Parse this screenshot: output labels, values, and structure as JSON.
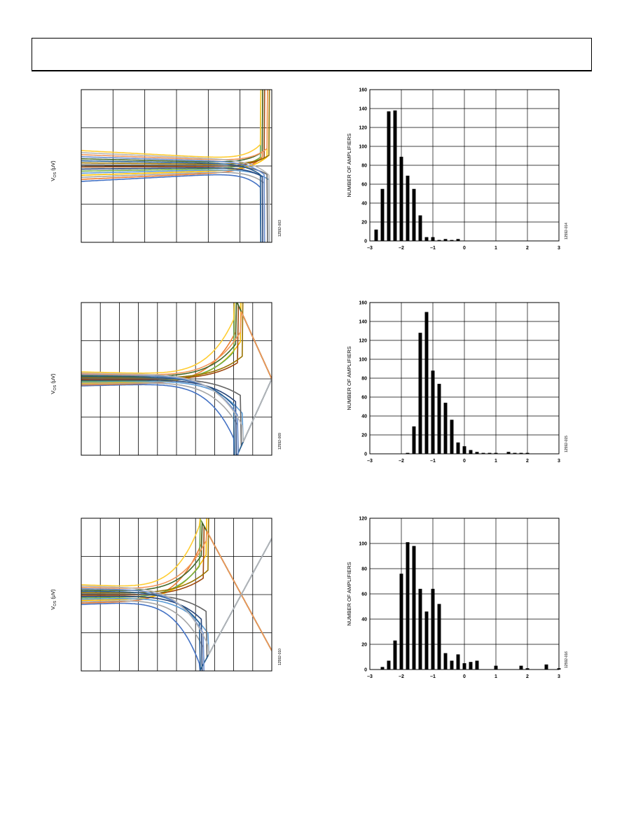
{
  "curve_plots": [
    {
      "ylabel_main": "V",
      "ylabel_sub": "OS",
      "ylabel_unit": " (μV)",
      "code": "12592-003"
    },
    {
      "ylabel_main": "V",
      "ylabel_sub": "OS",
      "ylabel_unit": " (μV)",
      "code": "12592-009"
    },
    {
      "ylabel_main": "V",
      "ylabel_sub": "OS",
      "ylabel_unit": " (μV)",
      "code": "12592-010"
    }
  ],
  "chart_data": [
    {
      "type": "bar",
      "ylabel": "NUMBER OF AMPLIFIERS",
      "xlim": [
        -3,
        3
      ],
      "ylim": [
        0,
        160
      ],
      "xticks": [
        "–3",
        "–2",
        "–1",
        "0",
        "1",
        "2",
        "3"
      ],
      "yticks": [
        "0",
        "20",
        "40",
        "60",
        "80",
        "100",
        "120",
        "140",
        "160"
      ],
      "code": "12592-014",
      "x": [
        -2.8,
        -2.6,
        -2.4,
        -2.2,
        -2.0,
        -1.8,
        -1.6,
        -1.4,
        -1.2,
        -1.0,
        -0.8,
        -0.6,
        -0.4,
        -0.2
      ],
      "values": [
        12,
        55,
        137,
        138,
        89,
        69,
        55,
        27,
        4,
        4,
        1,
        2,
        1,
        2
      ]
    },
    {
      "type": "bar",
      "ylabel": "NUMBER OF AMPLIFIERS",
      "xlim": [
        -3,
        3
      ],
      "ylim": [
        0,
        160
      ],
      "xticks": [
        "–3",
        "–2",
        "–1",
        "0",
        "1",
        "2",
        "3"
      ],
      "yticks": [
        "0",
        "20",
        "40",
        "60",
        "80",
        "100",
        "120",
        "140",
        "160"
      ],
      "code": "12592-015",
      "x": [
        -1.8,
        -1.6,
        -1.4,
        -1.2,
        -1.0,
        -0.8,
        -0.6,
        -0.4,
        -0.2,
        0.0,
        0.2,
        0.4,
        0.6,
        0.8,
        1.0,
        1.4,
        1.6,
        1.8,
        2.0
      ],
      "values": [
        1,
        29,
        128,
        150,
        88,
        74,
        54,
        36,
        12,
        8,
        4,
        2,
        1,
        1,
        1,
        2,
        1,
        1,
        1
      ]
    },
    {
      "type": "bar",
      "ylabel": "NUMBER OF AMPLIFIERS",
      "xlim": [
        -3,
        3
      ],
      "ylim": [
        0,
        120
      ],
      "xticks": [
        "–3",
        "–2",
        "–1",
        "0",
        "1",
        "2",
        "3"
      ],
      "yticks": [
        "0",
        "20",
        "40",
        "60",
        "80",
        "100",
        "120"
      ],
      "code": "12592-016",
      "x": [
        -2.6,
        -2.4,
        -2.2,
        -2.0,
        -1.8,
        -1.6,
        -1.4,
        -1.2,
        -1.0,
        -0.8,
        -0.6,
        -0.4,
        -0.2,
        0.0,
        0.2,
        0.4,
        1.0,
        1.8,
        2.0,
        2.6,
        3.0
      ],
      "values": [
        2,
        7,
        23,
        76,
        101,
        98,
        64,
        46,
        64,
        52,
        13,
        7,
        12,
        5,
        6,
        7,
        3,
        3,
        1,
        4,
        1
      ]
    }
  ]
}
